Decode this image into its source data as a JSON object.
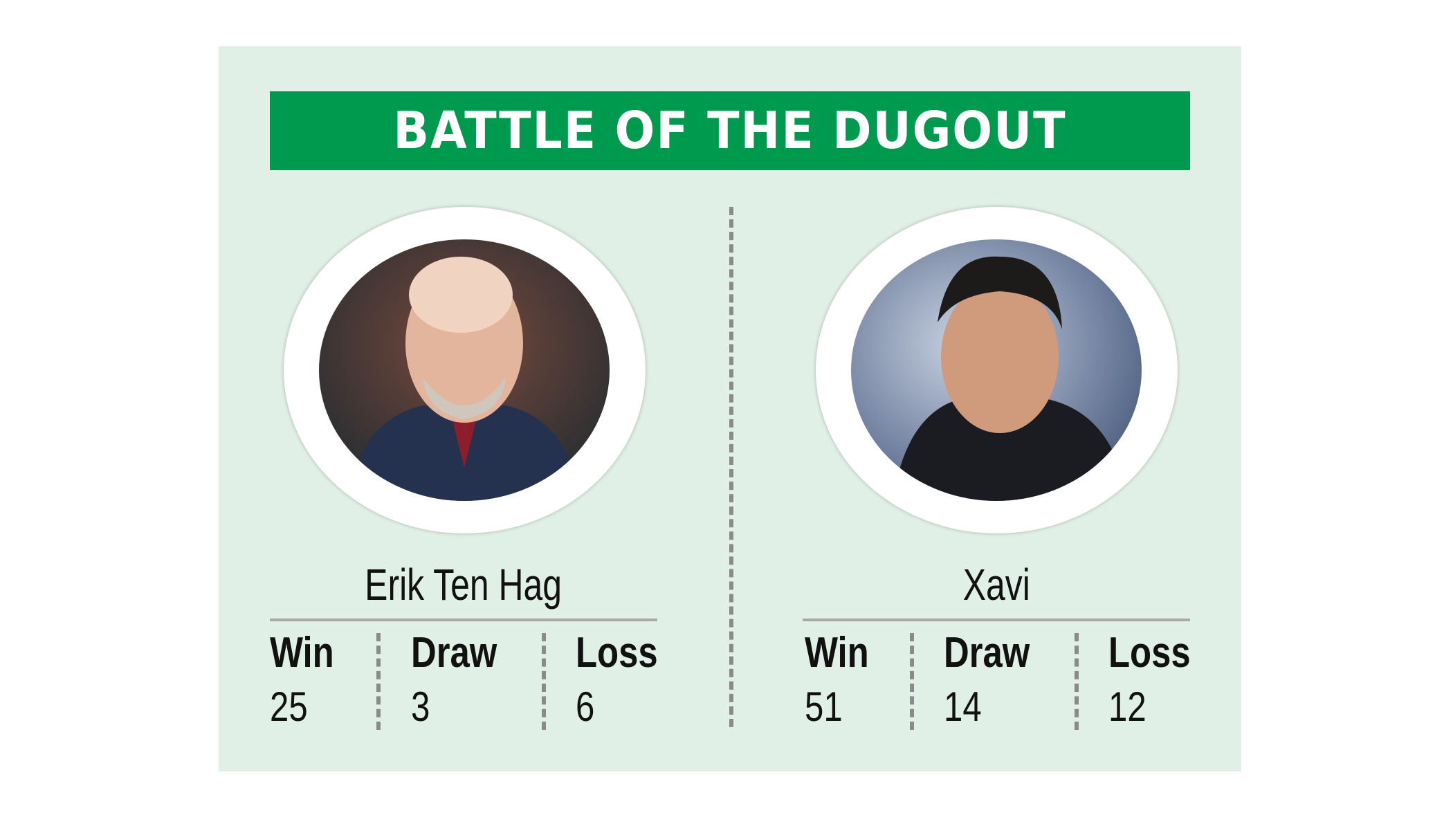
{
  "title": "BATTLE OF THE DUGOUT",
  "colors": {
    "banner": "#009a4e",
    "background": "#e1f0e6"
  },
  "managers": [
    {
      "name": "Erik Ten Hag",
      "photo": "erik-ten-hag-portrait",
      "stats": [
        {
          "label": "Win",
          "value": "25"
        },
        {
          "label": "Draw",
          "value": "3"
        },
        {
          "label": "Loss",
          "value": "6"
        }
      ]
    },
    {
      "name": "Xavi",
      "photo": "xavi-portrait",
      "stats": [
        {
          "label": "Win",
          "value": "51"
        },
        {
          "label": "Draw",
          "value": "14"
        },
        {
          "label": "Loss",
          "value": "12"
        }
      ]
    }
  ]
}
